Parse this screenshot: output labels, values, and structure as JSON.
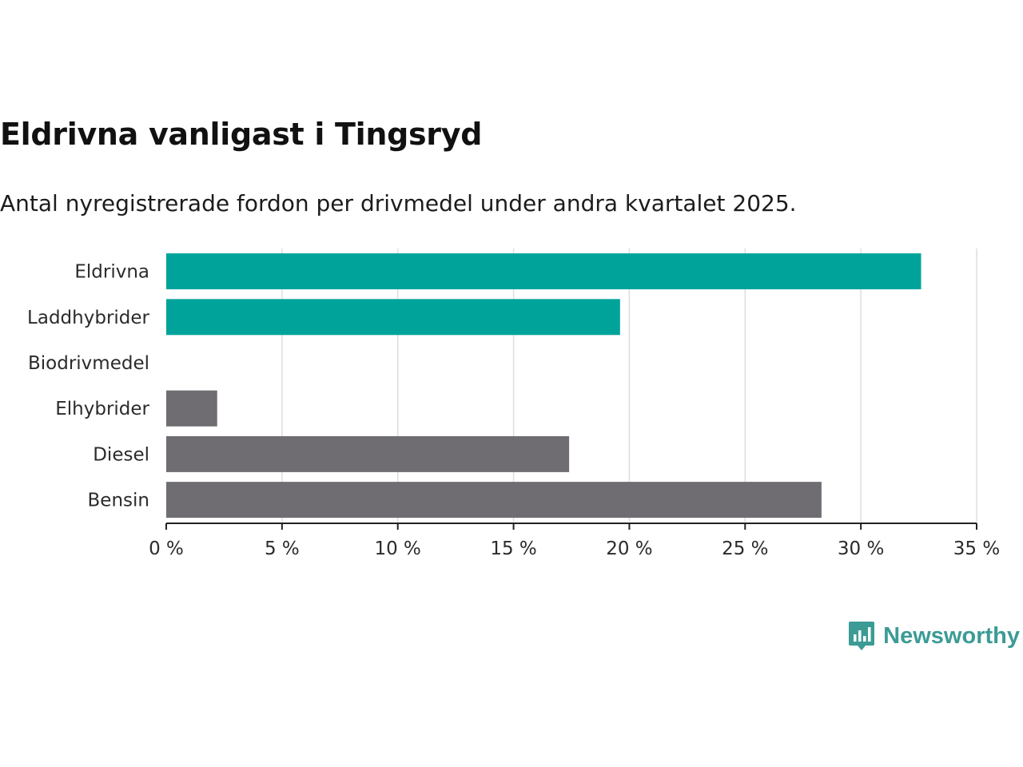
{
  "title": "Eldrivna vanligast i Tingsryd",
  "subtitle": "Antal nyregistrerade fordon per drivmedel under andra kvartalet 2025.",
  "brand": {
    "name": "Newsworthy",
    "color": "#3c9b95"
  },
  "colors": {
    "highlight": "#00a39a",
    "other": "#6f6d72",
    "grid": "#dedede",
    "axis": "#222222"
  },
  "chart_data": {
    "type": "bar",
    "orientation": "horizontal",
    "categories": [
      "Eldrivna",
      "Laddhybrider",
      "Biodrivmedel",
      "Elhybrider",
      "Diesel",
      "Bensin"
    ],
    "values": [
      32.6,
      19.6,
      0,
      2.2,
      17.4,
      28.3
    ],
    "highlight": [
      true,
      true,
      false,
      false,
      false,
      false
    ],
    "unit": "%",
    "xlim": [
      0,
      35
    ],
    "xticks": [
      0,
      5,
      10,
      15,
      20,
      25,
      30,
      35
    ],
    "xtick_labels": [
      "0 %",
      "5 %",
      "10 %",
      "15 %",
      "20 %",
      "25 %",
      "30 %",
      "35 %"
    ],
    "grid": true,
    "legend": "none"
  }
}
